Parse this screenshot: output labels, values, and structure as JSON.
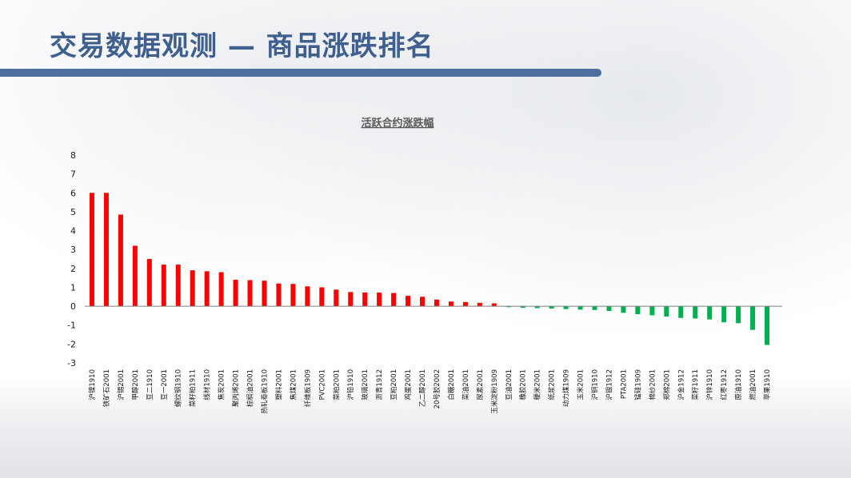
{
  "slide": {
    "title": "交易数据观测 — 商品涨跌排名"
  },
  "colors": {
    "title": "#3f5f8f",
    "title_bar": "#4c6fa0",
    "positive": "#ff0000",
    "negative": "#00b050"
  },
  "chart_data": {
    "type": "bar",
    "title": "活跃合约涨跌幅",
    "xlabel": "",
    "ylabel": "",
    "ylim": [
      -3,
      8
    ],
    "yticks": [
      -3,
      -2,
      -1,
      0,
      1,
      2,
      3,
      4,
      5,
      6,
      7,
      8
    ],
    "grid": false,
    "categories": [
      "沪镍1910",
      "铁矿石2001",
      "沪锡2001",
      "甲醇2001",
      "豆二1910",
      "豆一2001",
      "螺纹钢1910",
      "菜籽粕1911",
      "线材1910",
      "焦炭2001",
      "聚丙烯2001",
      "棕榈油2001",
      "热轧卷板1910",
      "塑料2001",
      "焦煤2001",
      "纤维板1909",
      "PVC2001",
      "菜粕2001",
      "沪铅1910",
      "玻璃2001",
      "沥青1912",
      "豆粕2001",
      "鸡蛋2001",
      "乙二醇2001",
      "20号胶2002",
      "白糖2001",
      "菜油2001",
      "尿素2001",
      "玉米淀粉1909",
      "豆油2001",
      "橡胶2001",
      "粳米2001",
      "纸浆2001",
      "动力煤1909",
      "玉米2001",
      "沪铜1910",
      "沪银1912",
      "PTA2001",
      "锰硅1909",
      "棉纱2001",
      "郑棉2001",
      "沪金1912",
      "菜籽1911",
      "沪锌1910",
      "红枣1912",
      "原油1910",
      "燃油2001",
      "苹果1910"
    ],
    "values": [
      6.0,
      6.0,
      4.85,
      3.2,
      2.5,
      2.2,
      2.2,
      1.9,
      1.85,
      1.8,
      1.4,
      1.38,
      1.35,
      1.2,
      1.18,
      1.05,
      1.0,
      0.88,
      0.75,
      0.73,
      0.72,
      0.7,
      0.55,
      0.5,
      0.35,
      0.25,
      0.22,
      0.18,
      0.15,
      -0.05,
      -0.08,
      -0.1,
      -0.12,
      -0.15,
      -0.18,
      -0.2,
      -0.25,
      -0.35,
      -0.42,
      -0.48,
      -0.55,
      -0.62,
      -0.65,
      -0.7,
      -0.85,
      -0.9,
      -1.25,
      -2.05
    ]
  }
}
